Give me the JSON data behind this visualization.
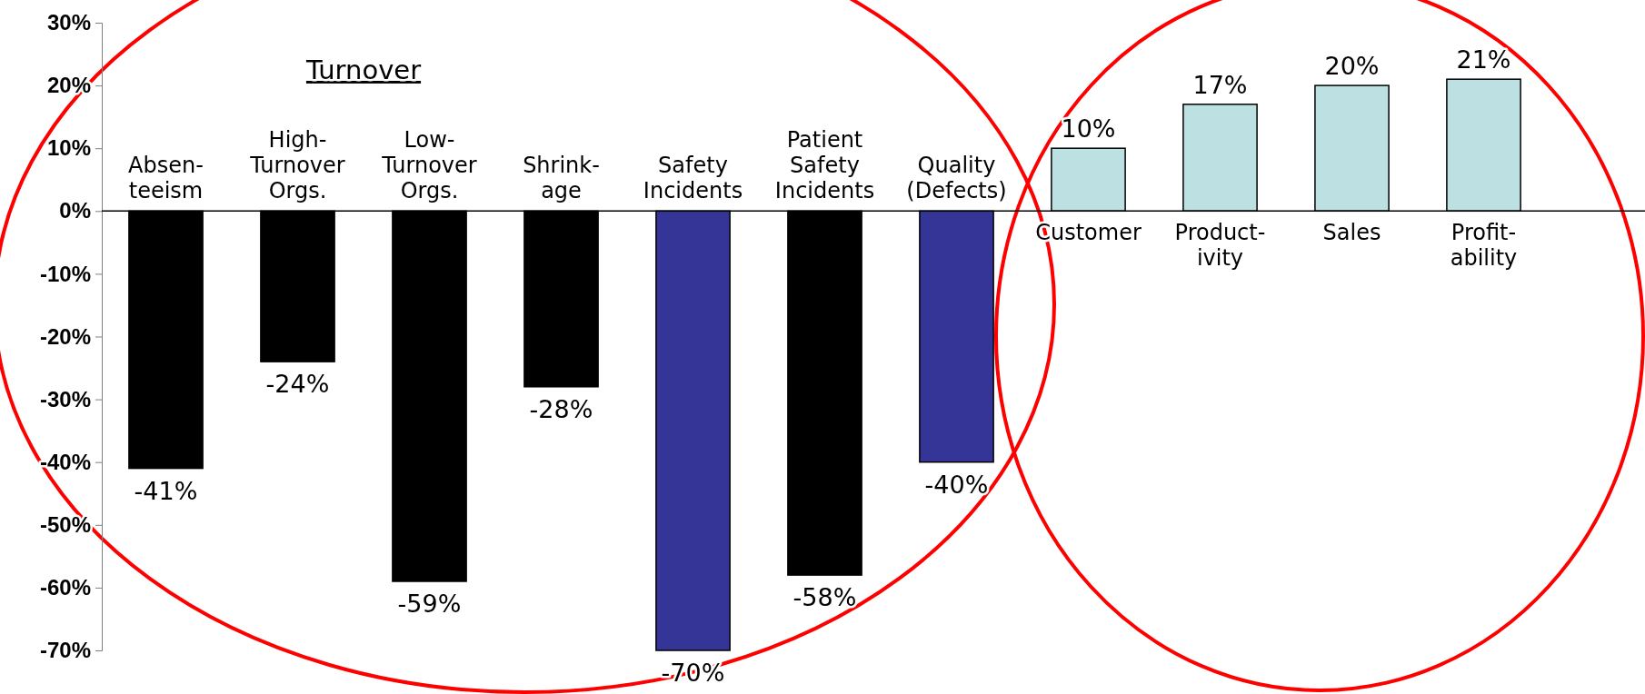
{
  "chart_data": {
    "type": "bar",
    "categories": [
      "Absen-\nteeism",
      "High-\nTurnover\nOrgs.",
      "Low-\nTurnover\nOrgs.",
      "Shrink-\nage",
      "Safety\nIncidents",
      "Patient\nSafety\nIncidents",
      "Quality\n(Defects)",
      "Customer",
      "Product-\nivity",
      "Sales",
      "Profit-\nability"
    ],
    "values": [
      -41,
      -24,
      -59,
      -28,
      -70,
      -58,
      -40,
      10,
      17,
      20,
      21
    ],
    "colors": [
      "#000000",
      "#000000",
      "#000000",
      "#000000",
      "#353597",
      "#000000",
      "#353597",
      "#bde1e3",
      "#bde1e3",
      "#bde1e3",
      "#bde1e3"
    ],
    "value_labels": [
      "-41%",
      "-24%",
      "-59%",
      "-28%",
      "-70%",
      "-58%",
      "-40%",
      "10%",
      "17%",
      "20%",
      "21%"
    ],
    "ylim": [
      -70,
      30
    ],
    "yticks": [
      {
        "value": -70,
        "label": "-70%"
      },
      {
        "value": -60,
        "label": "-60%"
      },
      {
        "value": -50,
        "label": "-50%"
      },
      {
        "value": -40,
        "label": "-40%"
      },
      {
        "value": -30,
        "label": "-30%"
      },
      {
        "value": -20,
        "label": "-20%"
      },
      {
        "value": -10,
        "label": "-10%"
      },
      {
        "value": 0,
        "label": "0%"
      },
      {
        "value": 10,
        "label": "10%"
      },
      {
        "value": 20,
        "label": "20%"
      },
      {
        "value": 30,
        "label": "30%"
      }
    ],
    "annotations": [
      "Turnover"
    ],
    "grid": false
  }
}
